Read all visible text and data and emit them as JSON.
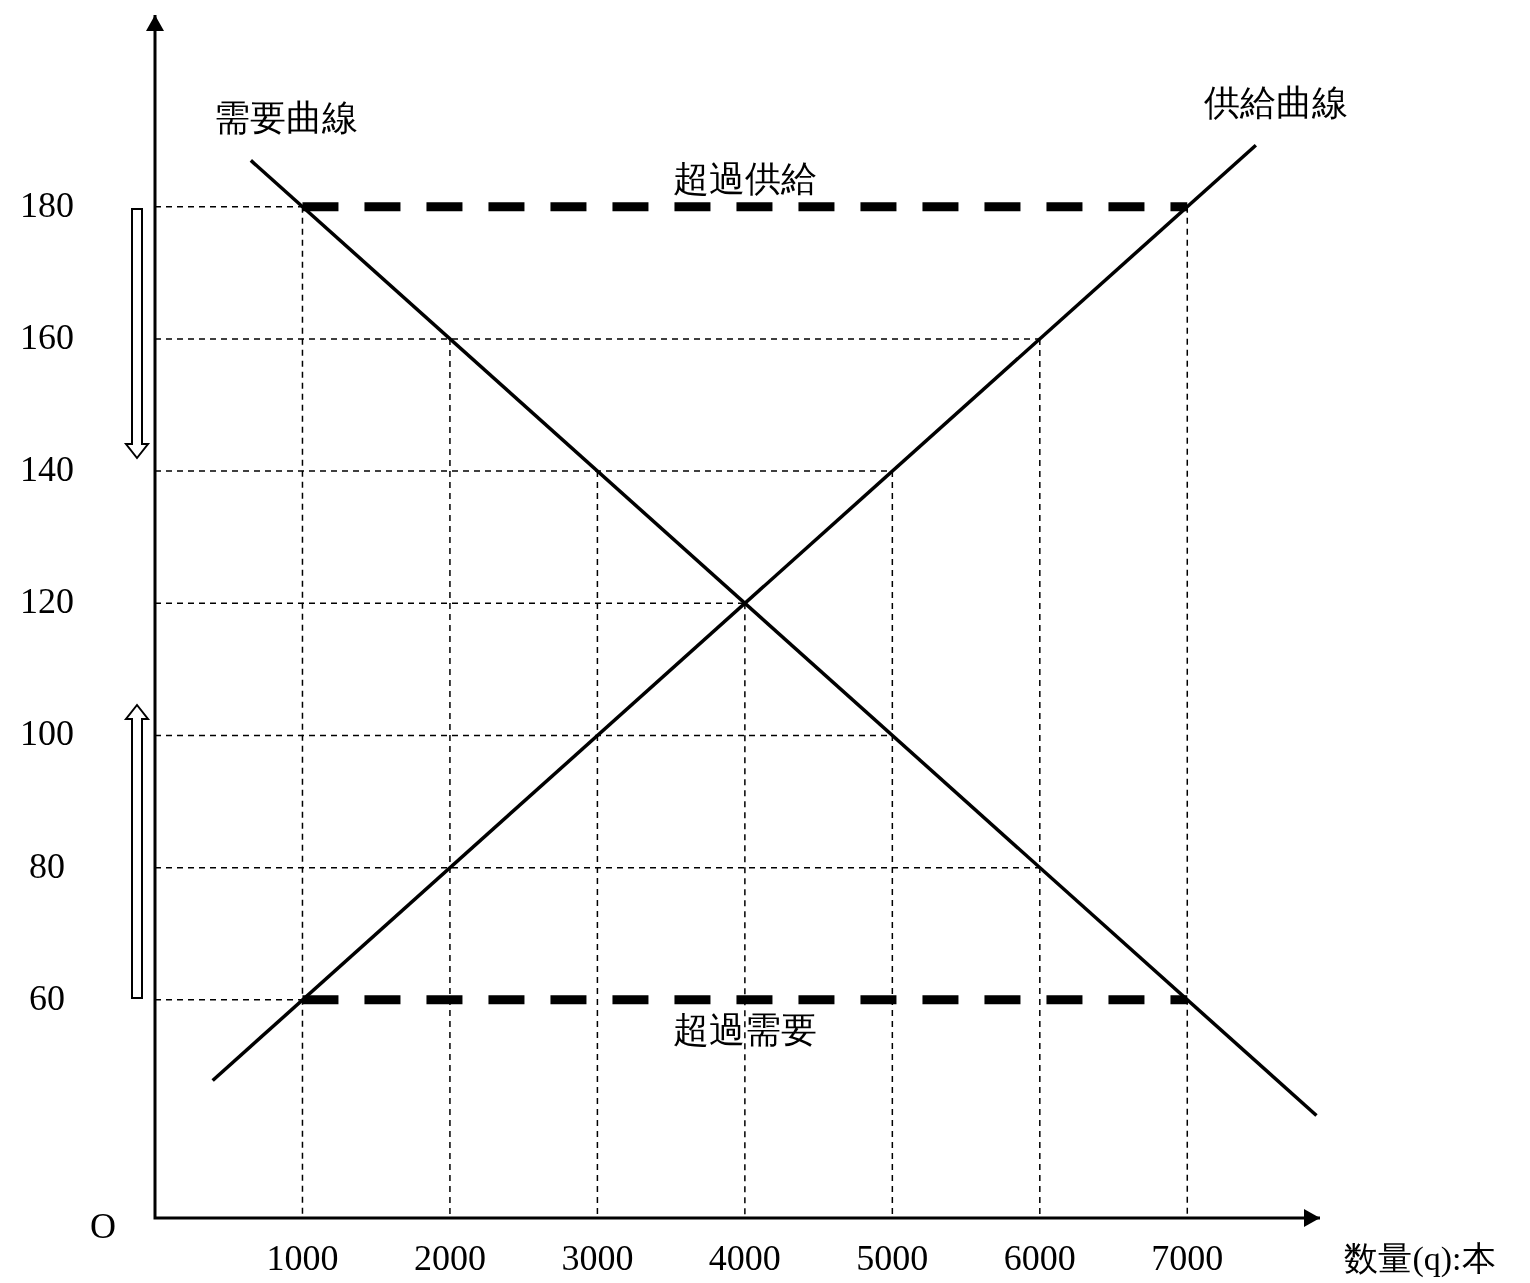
{
  "chart_data": {
    "type": "line",
    "xlabel": "数量(q):本",
    "annotations": [
      "O"
    ],
    "xlim": [
      0,
      7900
    ],
    "ylim": [
      27,
      209
    ],
    "xticks": [
      1000,
      2000,
      3000,
      4000,
      5000,
      6000,
      7000
    ],
    "yticks": [
      60,
      80,
      100,
      120,
      140,
      160,
      180
    ],
    "grid": false,
    "legend": false,
    "marker": "none",
    "series": [
      {
        "name": "需要曲線",
        "color": "#000000",
        "line_style": "solid",
        "x": [
          650,
          7876
        ],
        "values": [
          187,
          42.5
        ]
      },
      {
        "name": "供給曲線",
        "color": "#000000",
        "line_style": "solid",
        "x": [
          391,
          7465
        ],
        "values": [
          47.8,
          189.3
        ]
      },
      {
        "name": "超過供給",
        "color": "#000000",
        "line_style": "dashed",
        "x": [
          1000,
          7000
        ],
        "values": [
          180,
          180
        ]
      },
      {
        "name": "超過需要",
        "color": "#000000",
        "line_style": "dashed",
        "x": [
          1000,
          7000
        ],
        "values": [
          60,
          60
        ]
      },
      {
        "color": "#000000",
        "line_style": "dashed",
        "x": [
          0,
          1000
        ],
        "values": [
          180,
          180
        ]
      },
      {
        "color": "#000000",
        "line_style": "dashed",
        "x": [
          0,
          6000
        ],
        "values": [
          160,
          160
        ]
      },
      {
        "color": "#000000",
        "line_style": "dashed",
        "x": [
          0,
          5000
        ],
        "values": [
          140,
          140
        ]
      },
      {
        "color": "#000000",
        "line_style": "dashed",
        "x": [
          0,
          4000
        ],
        "values": [
          120,
          120
        ]
      },
      {
        "color": "#000000",
        "line_style": "dashed",
        "x": [
          0,
          5000
        ],
        "values": [
          100,
          100
        ]
      },
      {
        "color": "#000000",
        "line_style": "dashed",
        "x": [
          0,
          6000
        ],
        "values": [
          80,
          80
        ]
      },
      {
        "color": "#000000",
        "line_style": "dashed",
        "x": [
          0,
          1000
        ],
        "values": [
          60,
          60
        ]
      },
      {
        "color": "#000000",
        "line_style": "dashed",
        "x": [
          1000,
          1000
        ],
        "values": [
          180,
          27
        ]
      },
      {
        "color": "#000000",
        "line_style": "dashed",
        "x": [
          2000,
          2000
        ],
        "values": [
          160,
          27
        ]
      },
      {
        "color": "#000000",
        "line_style": "dashed",
        "x": [
          3000,
          3000
        ],
        "values": [
          140,
          27
        ]
      },
      {
        "color": "#000000",
        "line_style": "dashed",
        "x": [
          4000,
          4000
        ],
        "values": [
          120,
          27
        ]
      },
      {
        "color": "#000000",
        "line_style": "dashed",
        "x": [
          5000,
          5000
        ],
        "values": [
          140,
          27
        ]
      },
      {
        "color": "#000000",
        "line_style": "dashed",
        "x": [
          6000,
          6000
        ],
        "values": [
          160,
          27
        ]
      },
      {
        "color": "#000000",
        "line_style": "dashed",
        "x": [
          7000,
          7000
        ],
        "values": [
          180,
          27
        ]
      }
    ]
  }
}
